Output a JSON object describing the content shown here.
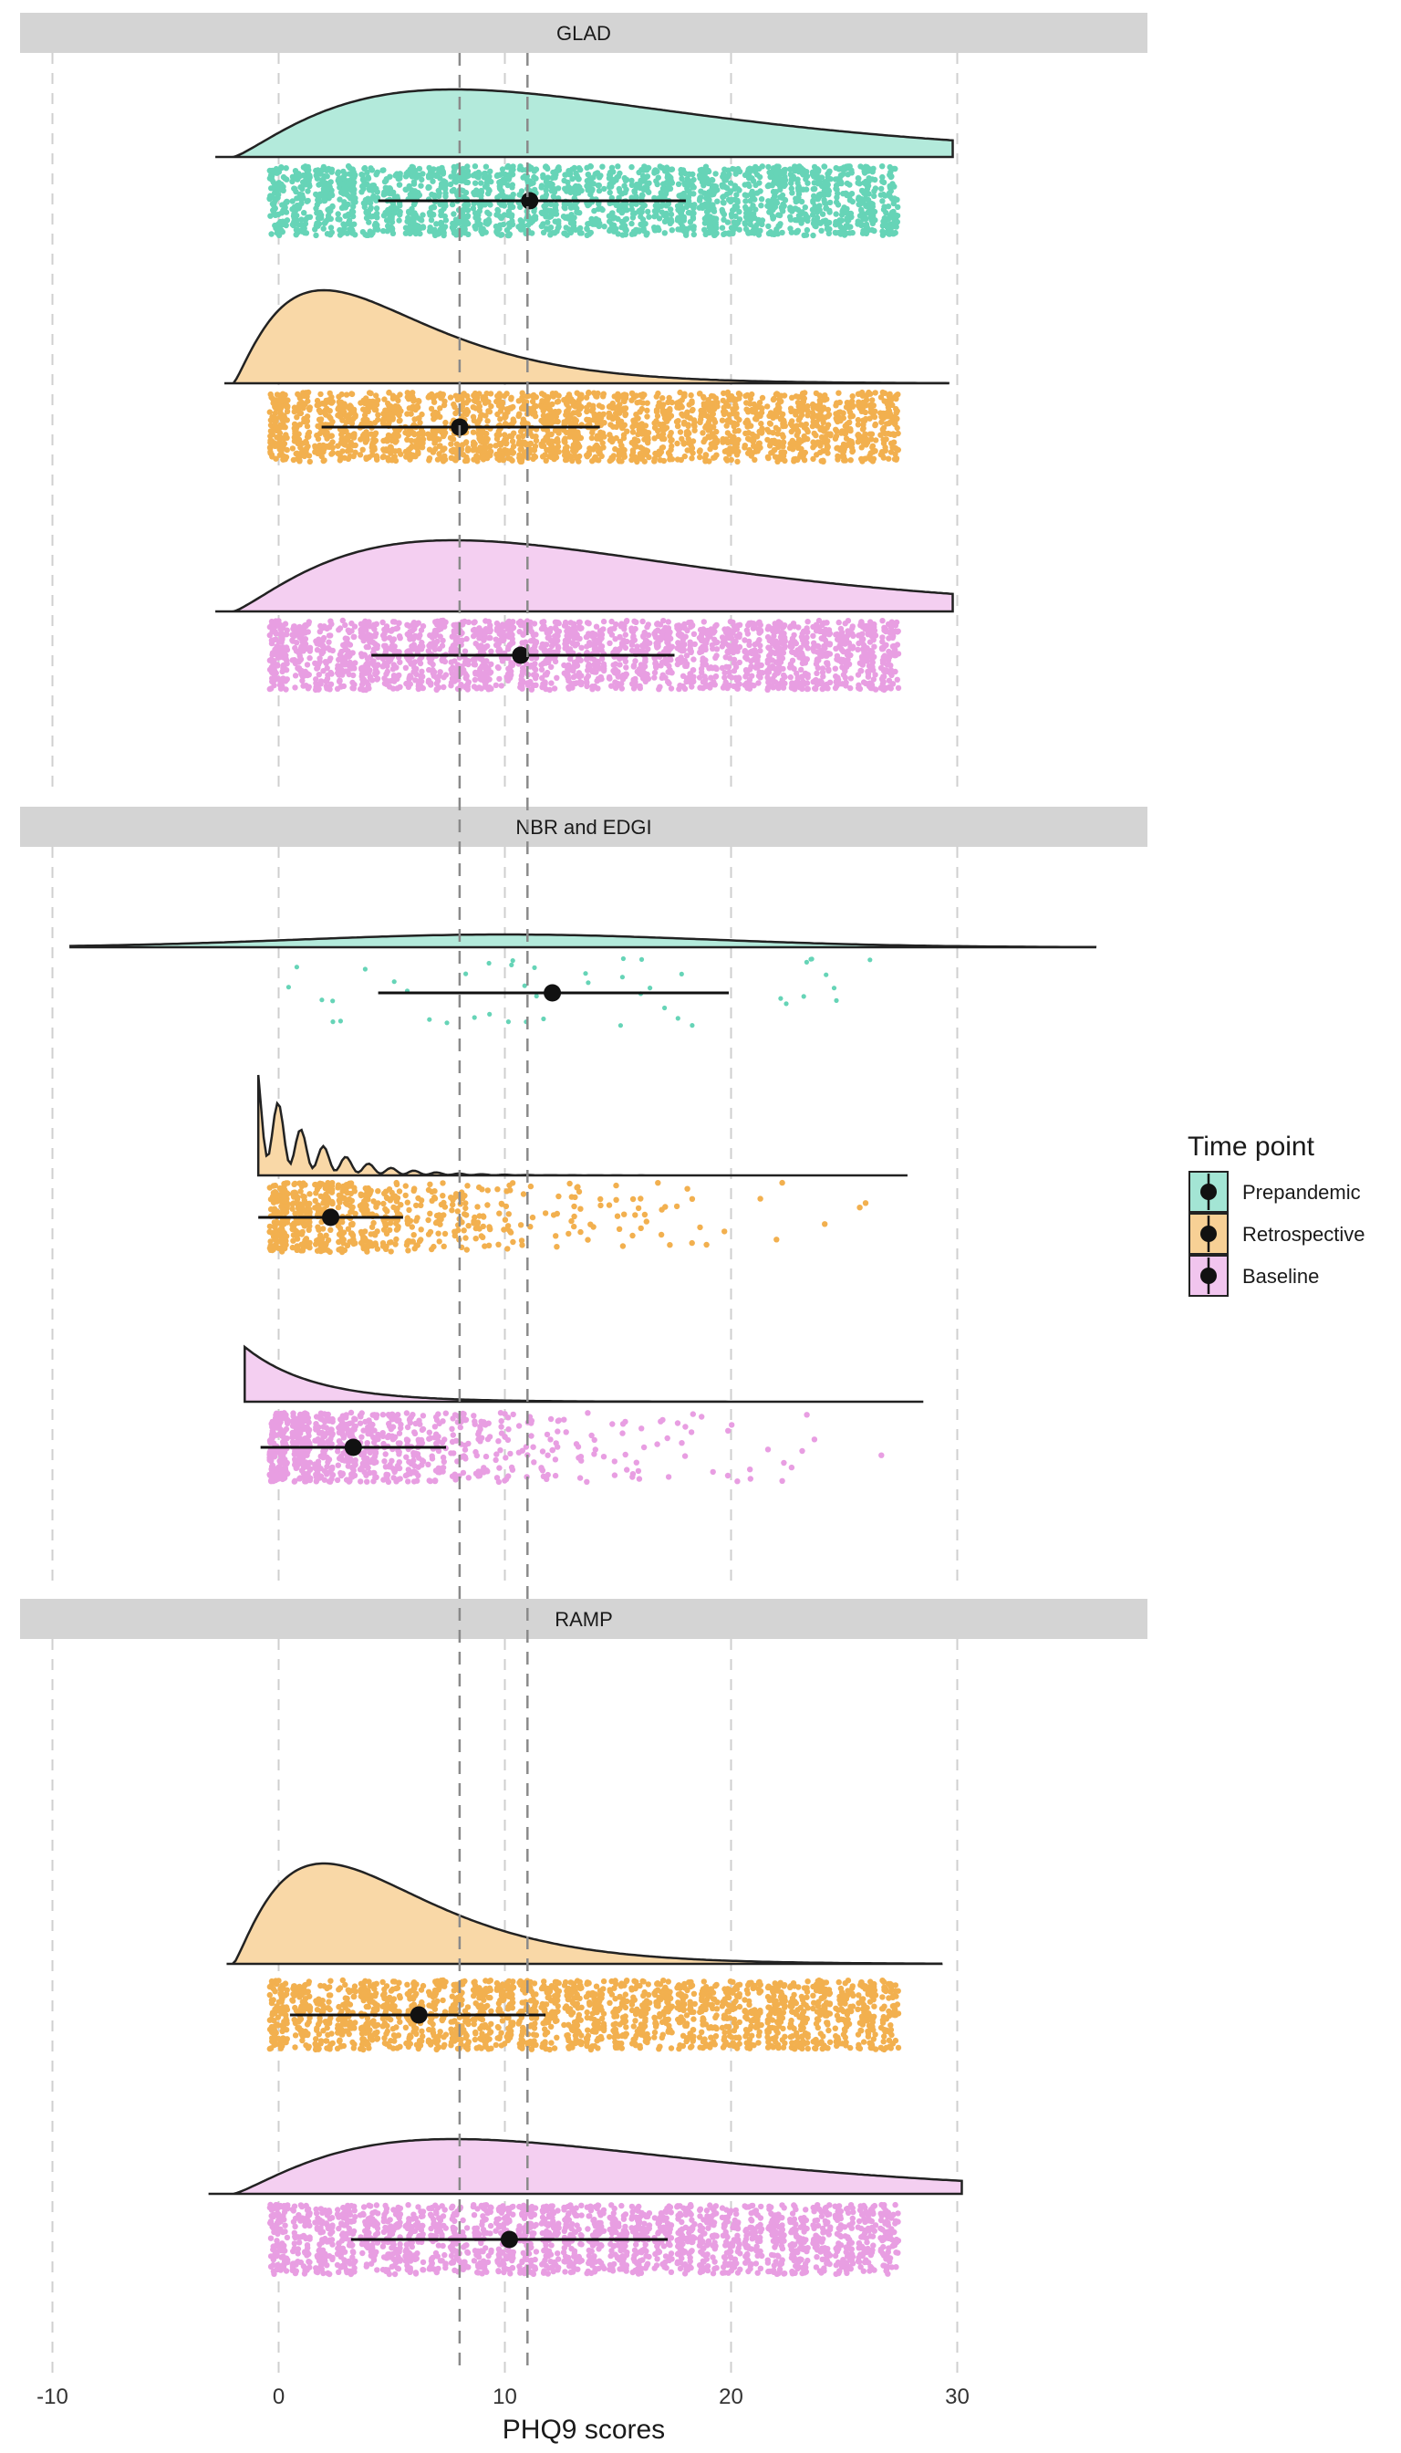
{
  "chart_data": {
    "type": "raincloud",
    "xlabel": "PHQ9 scores",
    "xlim": [
      -10,
      30
    ],
    "x_ticks": [
      -10,
      0,
      10,
      20,
      30
    ],
    "x_tick_labels": [
      "-10",
      "0",
      "10",
      "20",
      "30"
    ],
    "reference_lines": [
      8,
      11
    ],
    "legend": {
      "title": "Time point",
      "entries": [
        {
          "name": "Prepandemic",
          "color": "#66D4B7"
        },
        {
          "name": "Retrospective",
          "color": "#F2B04F"
        },
        {
          "name": "Baseline",
          "color": "#E89EE2"
        }
      ]
    },
    "facets": [
      {
        "label": "GLAD",
        "groups": [
          {
            "time_point": "Prepandemic",
            "mean": 11.1,
            "lower": 4.4,
            "upper": 18.0,
            "density_range": [
              -2.8,
              29.8
            ],
            "n_points": 2200,
            "dense": true
          },
          {
            "time_point": "Retrospective",
            "mean": 8.0,
            "lower": 1.9,
            "upper": 14.2,
            "density_range": [
              -2.4,
              29.6
            ],
            "n_points": 2200,
            "dense": true
          },
          {
            "time_point": "Baseline",
            "mean": 10.7,
            "lower": 4.1,
            "upper": 17.5,
            "density_range": [
              -2.8,
              29.8
            ],
            "n_points": 2200,
            "dense": true
          }
        ]
      },
      {
        "label": "NBR and EDGI",
        "groups": [
          {
            "time_point": "Prepandemic",
            "mean": 12.1,
            "lower": 4.4,
            "upper": 19.9,
            "density_range": [
              -9.2,
              36.1
            ],
            "n_points": 45,
            "dense": false
          },
          {
            "time_point": "Retrospective",
            "mean": 2.3,
            "lower": -0.9,
            "upper": 5.5,
            "density_range": [
              -0.9,
              27.8
            ],
            "n_points": 700,
            "dense": true
          },
          {
            "time_point": "Baseline",
            "mean": 3.3,
            "lower": -0.8,
            "upper": 7.4,
            "density_range": [
              -1.5,
              28.5
            ],
            "n_points": 900,
            "dense": true
          }
        ]
      },
      {
        "label": "RAMP",
        "groups": [
          {
            "time_point": "Retrospective",
            "mean": 6.2,
            "lower": 0.5,
            "upper": 11.8,
            "density_range": [
              -2.3,
              29.3
            ],
            "n_points": 2000,
            "dense": true
          },
          {
            "time_point": "Baseline",
            "mean": 10.2,
            "lower": 3.2,
            "upper": 17.2,
            "density_range": [
              -3.1,
              30.2
            ],
            "n_points": 2000,
            "dense": true
          }
        ]
      }
    ]
  }
}
